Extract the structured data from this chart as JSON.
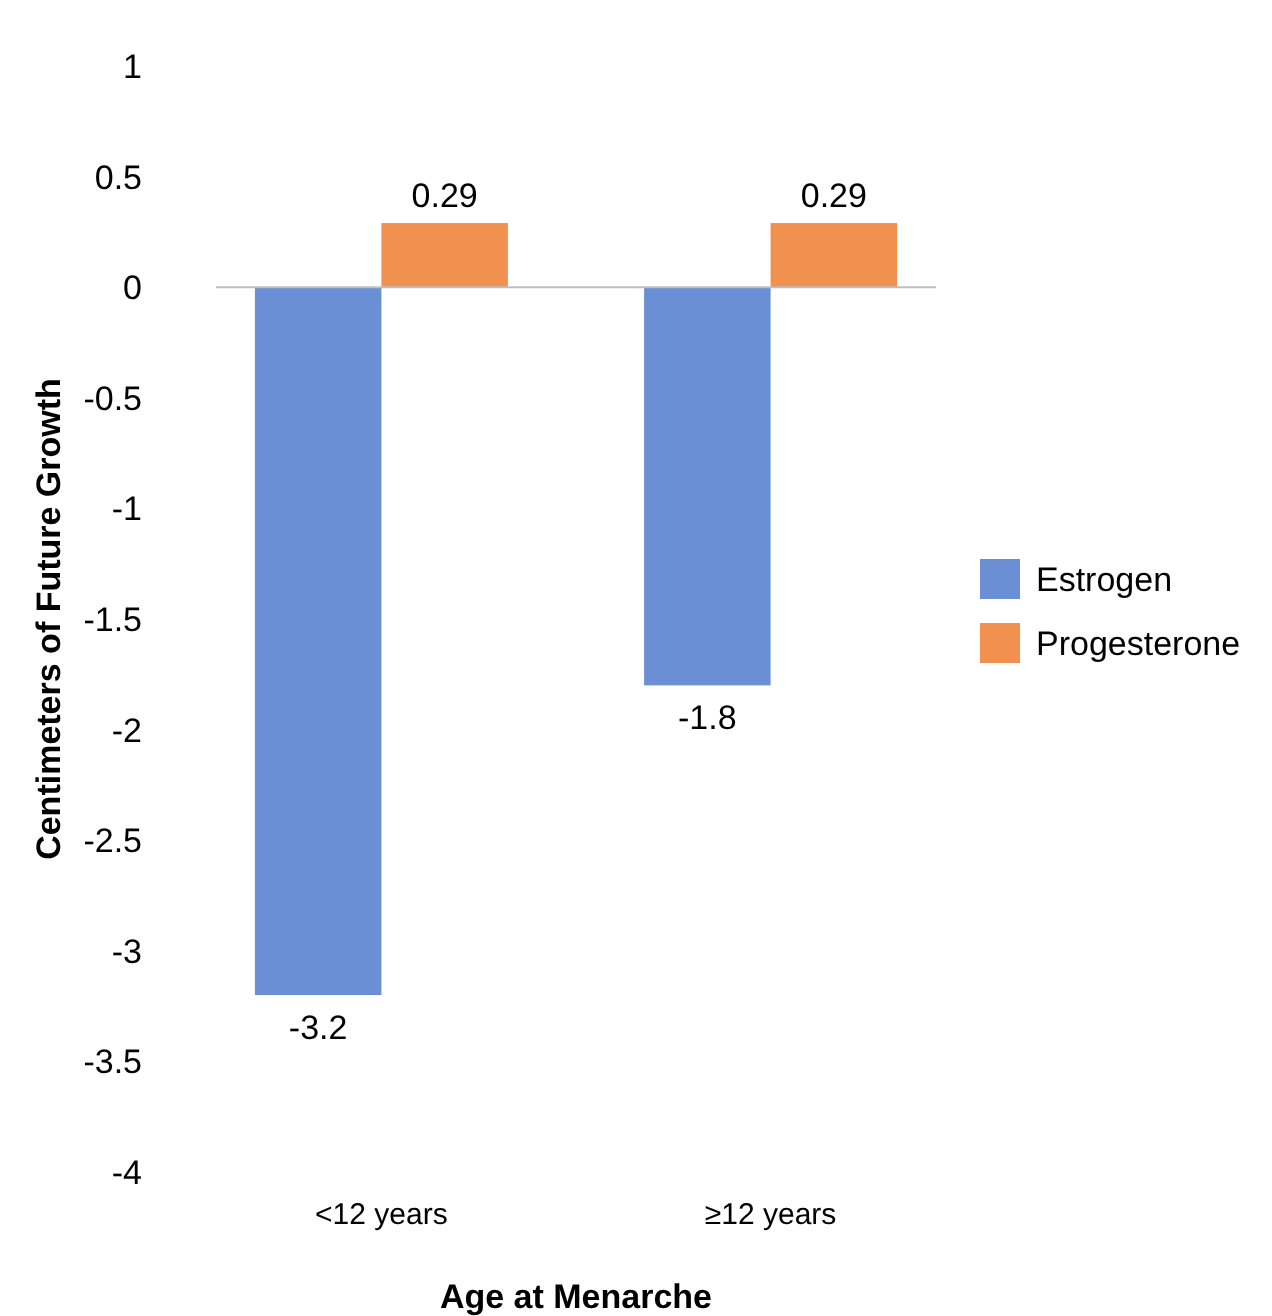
{
  "chart_data": {
    "type": "bar",
    "xlabel": "Age at Menarche",
    "ylabel": "Centimeters of Future Growth",
    "categories": [
      "<12 years",
      "≥12 years"
    ],
    "series": [
      {
        "name": "Estrogen",
        "color": "#6a8fd4",
        "values": [
          -3.2,
          -1.8
        ]
      },
      {
        "name": "Progesterone",
        "color": "#f0914f",
        "values": [
          0.29,
          0.29
        ]
      }
    ],
    "ylim": [
      -4,
      1
    ],
    "yticks": [
      1,
      0.5,
      0,
      -0.5,
      -1,
      -1.5,
      -2,
      -2.5,
      -3,
      -3.5,
      -4
    ],
    "legend": "right",
    "data_labels": true
  }
}
